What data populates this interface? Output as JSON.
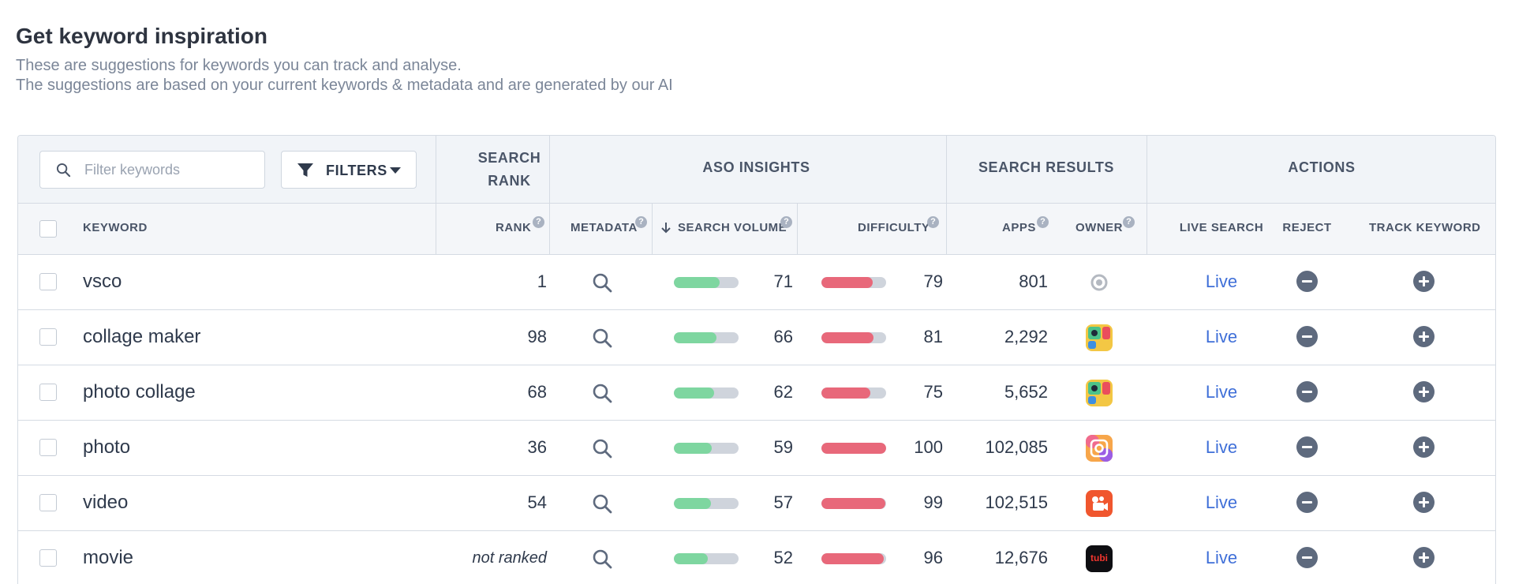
{
  "page": {
    "title": "Get keyword inspiration",
    "description_line1": "These are suggestions for keywords you can track and analyse.",
    "description_line2": "The suggestions are based on your current keywords & metadata and are generated by our AI"
  },
  "toolbar": {
    "filter_placeholder": "Filter keywords",
    "filters_label": "FILTERS"
  },
  "group_headers": {
    "search_rank": "SEARCH RANK",
    "aso_insights": "ASO INSIGHTS",
    "search_results": "SEARCH RESULTS",
    "actions": "ACTIONS"
  },
  "columns": {
    "keyword": "KEYWORD",
    "rank": "RANK",
    "metadata": "METADATA",
    "search_volume": "SEARCH VOLUME",
    "difficulty": "DIFFICULTY",
    "apps": "APPS",
    "owner": "OWNER",
    "live_search": "LIVE SEARCH",
    "reject": "REJECT",
    "track_keyword": "TRACK KEYWORD"
  },
  "icons": {
    "search": "search-icon",
    "filter": "filter-icon",
    "sort": "arrow-down-icon",
    "help": "question-icon",
    "reject": "minus-circle-icon",
    "track": "plus-circle-icon"
  },
  "colors": {
    "volume_bar": "#7ed6a0",
    "difficulty_bar": "#e8687a",
    "link": "#3f6fd8",
    "action_icon": "#5e6a7e"
  },
  "rows": [
    {
      "keyword": "vsco",
      "rank": "1",
      "volume": "71",
      "difficulty": "79",
      "apps": "801",
      "owner": "vsco-app-icon",
      "live": "Live"
    },
    {
      "keyword": "collage maker",
      "rank": "98",
      "volume": "66",
      "difficulty": "81",
      "apps": "2,292",
      "owner": "collage-app-icon",
      "live": "Live"
    },
    {
      "keyword": "photo collage",
      "rank": "68",
      "volume": "62",
      "difficulty": "75",
      "apps": "5,652",
      "owner": "collage-app-icon",
      "live": "Live"
    },
    {
      "keyword": "photo",
      "rank": "36",
      "volume": "59",
      "difficulty": "100",
      "apps": "102,085",
      "owner": "photo-grid-app-icon",
      "live": "Live"
    },
    {
      "keyword": "video",
      "rank": "54",
      "volume": "57",
      "difficulty": "99",
      "apps": "102,515",
      "owner": "video-app-icon",
      "live": "Live"
    },
    {
      "keyword": "movie",
      "rank": "not ranked",
      "volume": "52",
      "difficulty": "96",
      "apps": "12,676",
      "owner": "tubi-app-icon",
      "owner_text": "tubi",
      "live": "Live"
    }
  ]
}
